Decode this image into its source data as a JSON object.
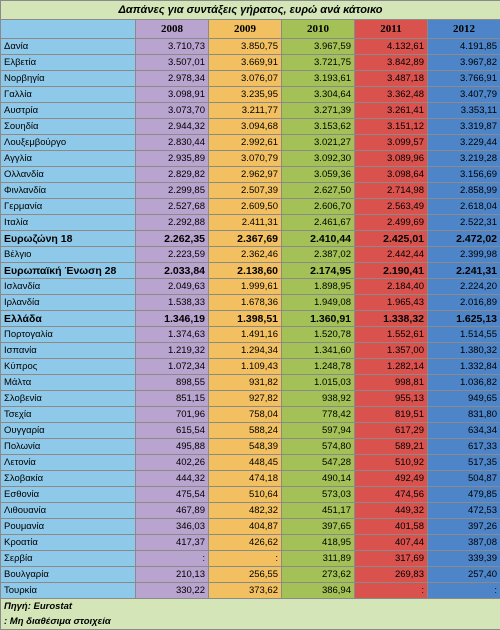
{
  "title": "Δαπάνες για συντάξεις γήρατος, ευρώ ανά κάτοικο",
  "years": [
    "2008",
    "2009",
    "2010",
    "2011",
    "2012"
  ],
  "rows": [
    {
      "country": "Δανία",
      "values": [
        "3.710,73",
        "3.850,75",
        "3.967,59",
        "4.132,61",
        "4.191,85"
      ],
      "bold": false
    },
    {
      "country": "Ελβετία",
      "values": [
        "3.507,01",
        "3.669,91",
        "3.721,75",
        "3.842,89",
        "3.967,82"
      ],
      "bold": false
    },
    {
      "country": "Νορβηγία",
      "values": [
        "2.978,34",
        "3.076,07",
        "3.193,61",
        "3.487,18",
        "3.766,91"
      ],
      "bold": false
    },
    {
      "country": "Γαλλία",
      "values": [
        "3.098,91",
        "3.235,95",
        "3.304,64",
        "3.362,48",
        "3.407,79"
      ],
      "bold": false
    },
    {
      "country": "Αυστρία",
      "values": [
        "3.073,70",
        "3.211,77",
        "3.271,39",
        "3.261,41",
        "3.353,11"
      ],
      "bold": false
    },
    {
      "country": "Σουηδία",
      "values": [
        "2.944,32",
        "3.094,68",
        "3.153,62",
        "3.151,12",
        "3.319,87"
      ],
      "bold": false
    },
    {
      "country": "Λουξεμβούργο",
      "values": [
        "2.830,44",
        "2.992,61",
        "3.021,27",
        "3.099,57",
        "3.229,44"
      ],
      "bold": false
    },
    {
      "country": "Αγγλία",
      "values": [
        "2.935,89",
        "3.070,79",
        "3.092,30",
        "3.089,96",
        "3.219,28"
      ],
      "bold": false
    },
    {
      "country": "Ολλανδία",
      "values": [
        "2.829,82",
        "2.962,97",
        "3.059,36",
        "3.098,64",
        "3.156,69"
      ],
      "bold": false
    },
    {
      "country": "Φινλανδία",
      "values": [
        "2.299,85",
        "2.507,39",
        "2.627,50",
        "2.714,98",
        "2.858,99"
      ],
      "bold": false
    },
    {
      "country": "Γερμανία",
      "values": [
        "2.527,68",
        "2.609,50",
        "2.606,70",
        "2.563,49",
        "2.618,04"
      ],
      "bold": false
    },
    {
      "country": "Ιταλία",
      "values": [
        "2.292,88",
        "2.411,31",
        "2.461,67",
        "2.499,69",
        "2.522,31"
      ],
      "bold": false
    },
    {
      "country": "Ευρωζώνη 18",
      "values": [
        "2.262,35",
        "2.367,69",
        "2.410,44",
        "2.425,01",
        "2.472,02"
      ],
      "bold": true
    },
    {
      "country": "Βέλγιο",
      "values": [
        "2.223,59",
        "2.362,46",
        "2.387,02",
        "2.442,44",
        "2.399,98"
      ],
      "bold": false
    },
    {
      "country": "Ευρωπαϊκή Ένωση 28",
      "values": [
        "2.033,84",
        "2.138,60",
        "2.174,95",
        "2.190,41",
        "2.241,31"
      ],
      "bold": true
    },
    {
      "country": "Ισλανδία",
      "values": [
        "2.049,63",
        "1.999,61",
        "1.898,95",
        "2.184,40",
        "2.224,20"
      ],
      "bold": false
    },
    {
      "country": "Ιρλανδία",
      "values": [
        "1.538,33",
        "1.678,36",
        "1.949,08",
        "1.965,43",
        "2.016,89"
      ],
      "bold": false
    },
    {
      "country": "Ελλάδα",
      "values": [
        "1.346,19",
        "1.398,51",
        "1.360,91",
        "1.338,32",
        "1.625,13"
      ],
      "bold": true
    },
    {
      "country": "Πορτογαλία",
      "values": [
        "1.374,63",
        "1.491,16",
        "1.520,78",
        "1.552,61",
        "1.514,55"
      ],
      "bold": false
    },
    {
      "country": "Ισπανία",
      "values": [
        "1.219,32",
        "1.294,34",
        "1.341,60",
        "1.357,00",
        "1.380,32"
      ],
      "bold": false
    },
    {
      "country": "Κύπρος",
      "values": [
        "1.072,34",
        "1.109,43",
        "1.248,78",
        "1.282,14",
        "1.332,84"
      ],
      "bold": false
    },
    {
      "country": "Μάλτα",
      "values": [
        "898,55",
        "931,82",
        "1.015,03",
        "998,81",
        "1.036,82"
      ],
      "bold": false
    },
    {
      "country": "Σλοβενία",
      "values": [
        "851,15",
        "927,82",
        "938,92",
        "955,13",
        "949,65"
      ],
      "bold": false
    },
    {
      "country": "Τσεχία",
      "values": [
        "701,96",
        "758,04",
        "778,42",
        "819,51",
        "831,80"
      ],
      "bold": false
    },
    {
      "country": "Ουγγαρία",
      "values": [
        "615,54",
        "588,24",
        "597,94",
        "617,29",
        "634,34"
      ],
      "bold": false
    },
    {
      "country": "Πολωνία",
      "values": [
        "495,88",
        "548,39",
        "574,80",
        "589,21",
        "617,33"
      ],
      "bold": false
    },
    {
      "country": "Λετονία",
      "values": [
        "402,26",
        "448,45",
        "547,28",
        "510,92",
        "517,35"
      ],
      "bold": false
    },
    {
      "country": "Σλοβακία",
      "values": [
        "444,32",
        "474,18",
        "490,14",
        "492,49",
        "504,87"
      ],
      "bold": false
    },
    {
      "country": "Εσθονία",
      "values": [
        "475,54",
        "510,64",
        "573,03",
        "474,56",
        "479,85"
      ],
      "bold": false
    },
    {
      "country": "Λιθουανία",
      "values": [
        "467,89",
        "482,32",
        "451,17",
        "449,32",
        "472,53"
      ],
      "bold": false
    },
    {
      "country": "Ρουμανία",
      "values": [
        "346,03",
        "404,87",
        "397,65",
        "401,58",
        "397,26"
      ],
      "bold": false
    },
    {
      "country": "Κροατία",
      "values": [
        "417,37",
        "426,62",
        "418,95",
        "407,44",
        "387,08"
      ],
      "bold": false
    },
    {
      "country": "Σερβία",
      "values": [
        ":",
        ":",
        "311,89",
        "317,69",
        "339,39"
      ],
      "bold": false
    },
    {
      "country": "Βουλγαρία",
      "values": [
        "210,13",
        "256,55",
        "273,62",
        "269,83",
        "257,40"
      ],
      "bold": false
    },
    {
      "country": "Τουρκία",
      "values": [
        "330,22",
        "373,62",
        "386,94",
        ":",
        ":"
      ],
      "bold": false
    }
  ],
  "footer": {
    "source": "Πηγή: Eurostat",
    "note": ": Μη διαθέσιμα στοιχεία"
  },
  "colors": {
    "country_column": "#8fc9ea",
    "year_2008": "#b9a3cf",
    "year_2009": "#f2c060",
    "year_2010": "#a3c156",
    "year_2011": "#d9524d",
    "year_2012": "#4d85c8",
    "title_band": "#d4e6b8"
  }
}
